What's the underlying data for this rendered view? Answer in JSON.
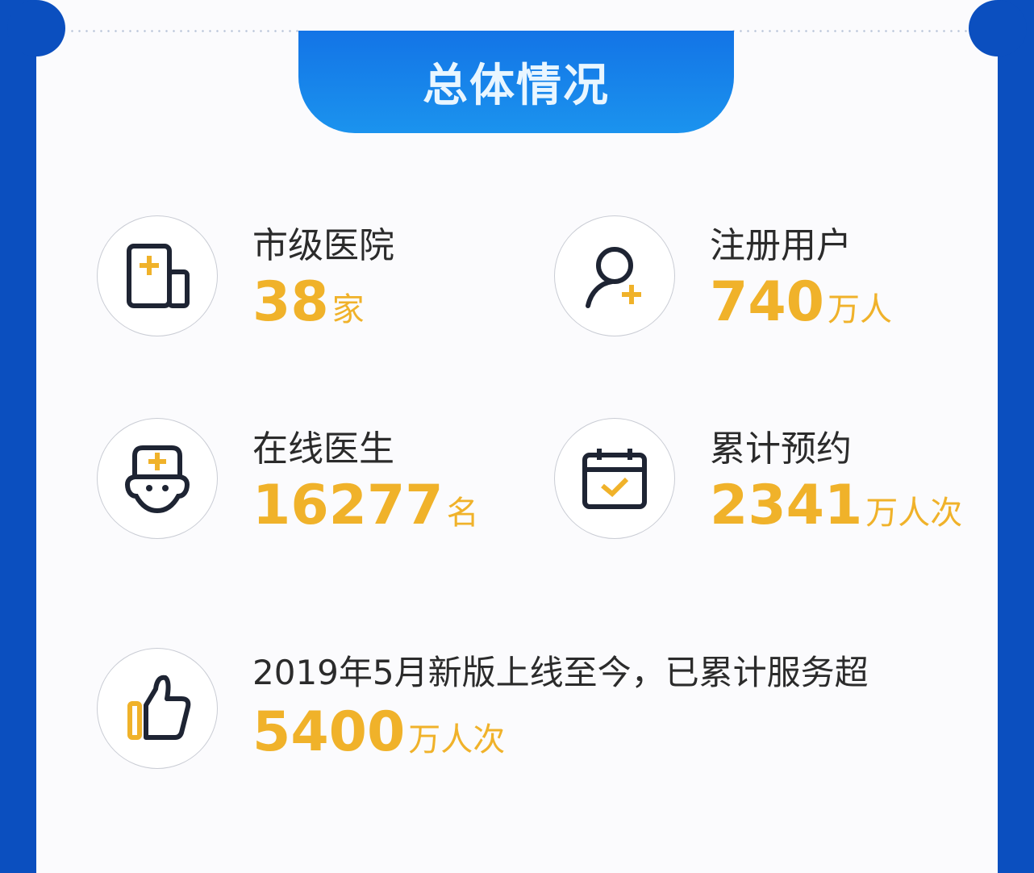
{
  "title": "总体情况",
  "colors": {
    "frame": "#0b4fbf",
    "tab": "#1a8ae8",
    "value": "#f0b22a",
    "text": "#2b2b2b"
  },
  "stats": [
    {
      "icon": "hospital-icon",
      "label": "市级医院",
      "number": "38",
      "unit": "家"
    },
    {
      "icon": "add-user-icon",
      "label": "注册用户",
      "number": "740",
      "unit": "万人"
    },
    {
      "icon": "doctor-icon",
      "label": "在线医生",
      "number": "16277",
      "unit": "名"
    },
    {
      "icon": "calendar-check-icon",
      "label": "累计预约",
      "number": "2341",
      "unit": "万人次"
    }
  ],
  "summary": {
    "icon": "thumbs-up-icon",
    "label": "2019年5月新版上线至今，已累计服务超",
    "number": "5400",
    "unit": "万人次"
  }
}
